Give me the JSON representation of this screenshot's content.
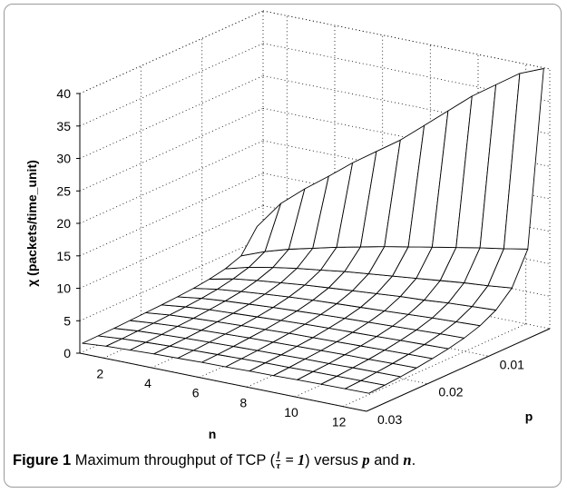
{
  "caption": {
    "figure_label": "Figure 1",
    "text_before": "Maximum throughput of TCP (",
    "frac_num": "l",
    "frac_den": "τ",
    "eq_part": " = 1",
    "text_after": ") versus ",
    "var_p": "p",
    "and_word": " and ",
    "var_n": "n",
    "period": "."
  },
  "chart_data": {
    "type": "surface",
    "title": "",
    "xlabel": "n",
    "ylabel": "p",
    "zlabel": "χ (packets/time_unit)",
    "n_values": [
      1,
      2,
      3,
      4,
      5,
      6,
      7,
      8,
      9,
      10,
      11,
      12,
      13
    ],
    "p_values": [
      0.001,
      0.0036,
      0.0062,
      0.0088,
      0.0114,
      0.014,
      0.0166,
      0.0192,
      0.0218,
      0.0244,
      0.027,
      0.0296
    ],
    "xlim": [
      1,
      13
    ],
    "ylim": [
      0,
      0.03
    ],
    "zlim": [
      0,
      40
    ],
    "xticks": [
      2,
      4,
      6,
      8,
      10,
      12
    ],
    "yticks": [
      0.01,
      0.02,
      0.03
    ],
    "ytick_labels": [
      "0.01",
      "0.02",
      "0.03"
    ],
    "zticks": [
      0,
      5,
      10,
      15,
      20,
      25,
      30,
      35,
      40
    ],
    "grid": true,
    "z_values": [
      [
        7.2,
        3.8,
        2.9,
        2.4,
        2.1,
        1.9,
        1.75,
        1.65,
        1.55,
        1.45,
        1.4,
        1.35
      ],
      [
        11.5,
        5.2,
        3.9,
        3.2,
        2.7,
        2.4,
        2.2,
        2.05,
        1.9,
        1.8,
        1.7,
        1.65
      ],
      [
        14.5,
        6.3,
        4.6,
        3.7,
        3.1,
        2.75,
        2.5,
        2.3,
        2.15,
        2.0,
        1.9,
        1.8
      ],
      [
        17.2,
        7.2,
        5.2,
        4.1,
        3.45,
        3.0,
        2.7,
        2.5,
        2.3,
        2.15,
        2.05,
        1.95
      ],
      [
        20.0,
        8.1,
        5.7,
        4.5,
        3.75,
        3.25,
        2.9,
        2.65,
        2.45,
        2.3,
        2.15,
        2.05
      ],
      [
        22.5,
        8.9,
        6.2,
        4.8,
        4.0,
        3.45,
        3.1,
        2.8,
        2.6,
        2.4,
        2.25,
        2.15
      ],
      [
        25.0,
        9.7,
        6.6,
        5.1,
        4.2,
        3.65,
        3.25,
        2.95,
        2.7,
        2.5,
        2.35,
        2.2
      ],
      [
        28.0,
        10.4,
        7.0,
        5.4,
        4.4,
        3.8,
        3.4,
        3.05,
        2.8,
        2.6,
        2.45,
        2.3
      ],
      [
        31.0,
        11.1,
        7.4,
        5.7,
        4.6,
        3.95,
        3.5,
        3.15,
        2.9,
        2.7,
        2.5,
        2.35
      ],
      [
        34.0,
        11.8,
        7.8,
        5.9,
        4.8,
        4.1,
        3.6,
        3.25,
        3.0,
        2.75,
        2.6,
        2.45
      ],
      [
        36.5,
        12.5,
        8.2,
        6.2,
        5.0,
        4.25,
        3.75,
        3.35,
        3.05,
        2.85,
        2.65,
        2.5
      ],
      [
        39.0,
        13.1,
        8.5,
        6.4,
        5.15,
        4.4,
        3.85,
        3.45,
        3.15,
        2.9,
        2.7,
        2.55
      ],
      [
        40.5,
        13.8,
        8.9,
        6.6,
        5.3,
        4.5,
        3.95,
        3.55,
        3.2,
        2.95,
        2.75,
        2.6
      ]
    ]
  }
}
